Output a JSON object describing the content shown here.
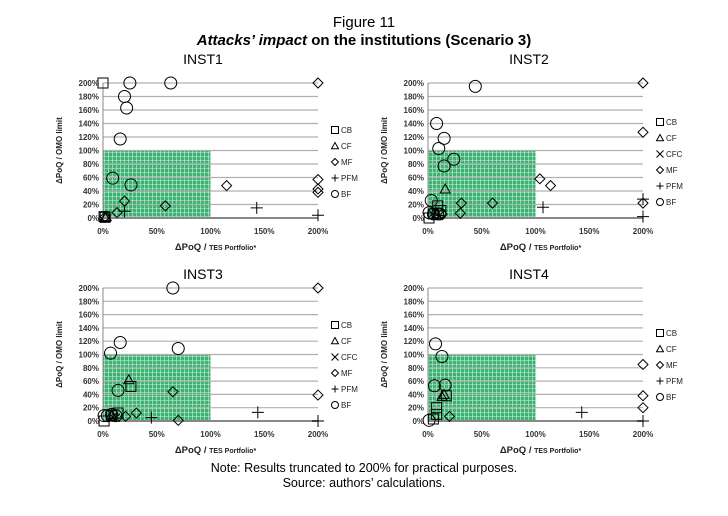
{
  "figure": {
    "label": "Figure 11",
    "subtitle_italic": "Attacks’ impact",
    "subtitle_rest": " on the institutions (Scenario 3)",
    "note": "Note: Results truncated to 200% for practical purposes.",
    "source": "Source: authors’ calculations."
  },
  "colors": {
    "safe_zone": "#3cb371",
    "grid": "#b0b0b0",
    "marker": "#000000"
  },
  "chart_data": [
    {
      "type": "scatter",
      "title": "INST1",
      "xlabel_main": "ΔPoQ / ",
      "xlabel_small": "TES Portfolio*",
      "ylabel": "ΔPoQ / OMO limit",
      "xlim": [
        0,
        200
      ],
      "ylim": [
        0,
        200
      ],
      "xticks": [
        "0%",
        "50%",
        "100%",
        "150%",
        "200%"
      ],
      "yticks": [
        "0%",
        "20%",
        "40%",
        "60%",
        "80%",
        "100%",
        "120%",
        "140%",
        "160%",
        "180%",
        "200%"
      ],
      "safe_zone": {
        "x": [
          0,
          100
        ],
        "y": [
          0,
          100
        ]
      },
      "series": [
        {
          "name": "CB",
          "marker": "square",
          "points": [
            [
              0,
              200
            ],
            [
              1,
              2
            ],
            [
              2,
              1
            ]
          ]
        },
        {
          "name": "CF",
          "marker": "triangle",
          "points": [
            [
              3,
              2
            ],
            [
              2,
              1
            ]
          ]
        },
        {
          "name": "MF",
          "marker": "diamond",
          "points": [
            [
              200,
              200
            ],
            [
              115,
              48
            ],
            [
              200,
              57
            ],
            [
              200,
              43
            ],
            [
              200,
              38
            ],
            [
              20,
              25
            ],
            [
              58,
              18
            ],
            [
              13,
              8
            ],
            [
              2,
              2
            ]
          ]
        },
        {
          "name": "PFM",
          "marker": "plus",
          "points": [
            [
              143,
              15
            ],
            [
              200,
              4
            ],
            [
              20,
              10
            ]
          ]
        },
        {
          "name": "BF",
          "marker": "circle",
          "points": [
            [
              25,
              200
            ],
            [
              63,
              200
            ],
            [
              20,
              180
            ],
            [
              22,
              163
            ],
            [
              16,
              117
            ],
            [
              9,
              59
            ],
            [
              26,
              49
            ]
          ]
        }
      ]
    },
    {
      "type": "scatter",
      "title": "INST2",
      "xlabel_main": "ΔPoQ / ",
      "xlabel_small": "TES Portfolio*",
      "ylabel": "ΔPoQ / OMO limit",
      "xlim": [
        0,
        200
      ],
      "ylim": [
        0,
        200
      ],
      "xticks": [
        "0%",
        "50%",
        "100%",
        "150%",
        "200%"
      ],
      "yticks": [
        "0%",
        "20%",
        "40%",
        "60%",
        "80%",
        "100%",
        "120%",
        "140%",
        "160%",
        "180%",
        "200%"
      ],
      "safe_zone": {
        "x": [
          0,
          100
        ],
        "y": [
          0,
          100
        ]
      },
      "series": [
        {
          "name": "CB",
          "marker": "square",
          "points": [
            [
              1,
              0
            ],
            [
              9,
              18
            ],
            [
              12,
              11
            ],
            [
              5,
              6
            ]
          ]
        },
        {
          "name": "CF",
          "marker": "triangle",
          "points": [
            [
              16,
              43
            ],
            [
              8,
              5
            ]
          ]
        },
        {
          "name": "CFC",
          "marker": "cross",
          "points": [
            [
              4,
              6
            ],
            [
              10,
              3
            ]
          ]
        },
        {
          "name": "MF",
          "marker": "diamond",
          "points": [
            [
              200,
              200
            ],
            [
              200,
              127
            ],
            [
              104,
              58
            ],
            [
              114,
              48
            ],
            [
              200,
              22
            ],
            [
              31,
              22
            ],
            [
              60,
              22
            ],
            [
              30,
              7
            ],
            [
              13,
              6
            ]
          ]
        },
        {
          "name": "PFM",
          "marker": "plus",
          "points": [
            [
              107,
              16
            ],
            [
              200,
              2
            ],
            [
              200,
              28
            ]
          ]
        },
        {
          "name": "BF",
          "marker": "circle",
          "points": [
            [
              44,
              195
            ],
            [
              8,
              140
            ],
            [
              15,
              118
            ],
            [
              10,
              103
            ],
            [
              24,
              87
            ],
            [
              15,
              77
            ],
            [
              3,
              26
            ],
            [
              1,
              8
            ],
            [
              5,
              6
            ],
            [
              9,
              6
            ],
            [
              11,
              6
            ]
          ]
        }
      ]
    },
    {
      "type": "scatter",
      "title": "INST3",
      "xlabel_main": "ΔPoQ / ",
      "xlabel_small": "TES Portfolio*",
      "ylabel": "ΔPoQ / OMO limit",
      "xlim": [
        0,
        200
      ],
      "ylim": [
        0,
        200
      ],
      "xticks": [
        "0%",
        "50%",
        "100%",
        "150%",
        "200%"
      ],
      "yticks": [
        "0%",
        "20%",
        "40%",
        "60%",
        "80%",
        "100%",
        "120%",
        "140%",
        "160%",
        "180%",
        "200%"
      ],
      "safe_zone": {
        "x": [
          0,
          100
        ],
        "y": [
          0,
          100
        ]
      },
      "series": [
        {
          "name": "CB",
          "marker": "square",
          "points": [
            [
              26,
              52
            ],
            [
              1,
              0
            ],
            [
              14,
              12
            ],
            [
              8,
              8
            ]
          ]
        },
        {
          "name": "CF",
          "marker": "triangle",
          "points": [
            [
              24,
              62
            ],
            [
              8,
              10
            ]
          ]
        },
        {
          "name": "CFC",
          "marker": "cross",
          "points": [
            [
              9,
              6
            ],
            [
              12,
              5
            ]
          ]
        },
        {
          "name": "MF",
          "marker": "diamond",
          "points": [
            [
              200,
              200
            ],
            [
              200,
              39
            ],
            [
              65,
              44
            ],
            [
              31,
              12
            ],
            [
              21,
              7
            ],
            [
              70,
              1
            ]
          ]
        },
        {
          "name": "PFM",
          "marker": "plus",
          "points": [
            [
              144,
              13
            ],
            [
              200,
              0
            ],
            [
              45,
              5
            ]
          ]
        },
        {
          "name": "BF",
          "marker": "circle",
          "points": [
            [
              65,
              200
            ],
            [
              16,
              118
            ],
            [
              70,
              109
            ],
            [
              7,
              102
            ],
            [
              14,
              46
            ],
            [
              1,
              8
            ],
            [
              8,
              10
            ],
            [
              4,
              8
            ],
            [
              12,
              8
            ]
          ]
        }
      ]
    },
    {
      "type": "scatter",
      "title": "INST4",
      "xlabel_main": "ΔPoQ / ",
      "xlabel_small": "TES Portfolio*",
      "ylabel": "ΔPoQ / OMO limit",
      "xlim": [
        0,
        200
      ],
      "ylim": [
        0,
        200
      ],
      "xticks": [
        "0%",
        "50%",
        "100%",
        "150%",
        "200%"
      ],
      "yticks": [
        "0%",
        "20%",
        "40%",
        "60%",
        "80%",
        "100%",
        "120%",
        "140%",
        "160%",
        "180%",
        "200%"
      ],
      "safe_zone": {
        "x": [
          0,
          100
        ],
        "y": [
          0,
          100
        ]
      },
      "series": [
        {
          "name": "CB",
          "marker": "square",
          "points": [
            [
              17,
              38
            ],
            [
              8,
              20
            ],
            [
              8,
              10
            ],
            [
              5,
              3
            ]
          ]
        },
        {
          "name": "CF",
          "marker": "triangle",
          "points": [
            [
              13,
              37
            ],
            [
              15,
              40
            ]
          ]
        },
        {
          "name": "MF",
          "marker": "diamond",
          "points": [
            [
              200,
              85
            ],
            [
              200,
              38
            ],
            [
              200,
              20
            ],
            [
              20,
              7
            ]
          ]
        },
        {
          "name": "PFM",
          "marker": "plus",
          "points": [
            [
              143,
              13
            ],
            [
              200,
              0
            ]
          ]
        },
        {
          "name": "BF",
          "marker": "circle",
          "points": [
            [
              7,
              116
            ],
            [
              13,
              97
            ],
            [
              6,
              53
            ],
            [
              16,
              54
            ],
            [
              1,
              1
            ]
          ]
        }
      ]
    }
  ]
}
